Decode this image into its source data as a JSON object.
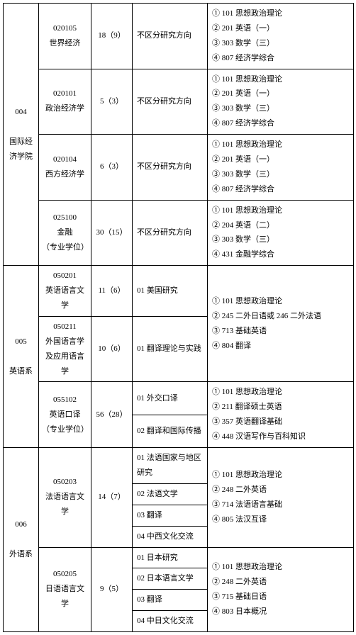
{
  "departments": [
    {
      "code": "004",
      "name": "国际经济学院",
      "majors": [
        {
          "code": "020105",
          "name": "世界经济",
          "quota": "18（9）",
          "directions": [
            "不区分研究方向"
          ],
          "exams": [
            "① 101 思想政治理论",
            "② 201 英语（一）",
            "③ 303 数学（三）",
            "④ 807 经济学综合"
          ]
        },
        {
          "code": "020101",
          "name": "政治经济学",
          "quota": "5（3）",
          "directions": [
            "不区分研究方向"
          ],
          "exams": [
            "① 101 思想政治理论",
            "② 201 英语（一）",
            "③ 303 数学（三）",
            "④ 807 经济学综合"
          ]
        },
        {
          "code": "020104",
          "name": "西方经济学",
          "quota": "6（3）",
          "directions": [
            "不区分研究方向"
          ],
          "exams": [
            "① 101 思想政治理论",
            "② 201 英语（一）",
            "③ 303 数学（三）",
            "④ 807 经济学综合"
          ]
        },
        {
          "code": "025100",
          "name": "金融",
          "note": "（专业学位）",
          "quota": "30（15）",
          "directions": [
            "不区分研究方向"
          ],
          "exams": [
            "① 101 思想政治理论",
            "② 204 英语（二）",
            "③ 303 数学（三）",
            "④ 431 金融学综合"
          ]
        }
      ]
    },
    {
      "code": "005",
      "name": "英语系",
      "majors": [
        {
          "code": "050201",
          "name": "英语语言文学",
          "quota": "11（6）",
          "directions": [
            "01 美国研究"
          ],
          "exams": [
            "① 101 思想政治理论",
            "② 245 二外日语或 246 二外法语",
            "③ 713 基础英语",
            "④ 804 翻译"
          ],
          "share_exam_next": true
        },
        {
          "code": "050211",
          "name": "外国语言学及应用语言学",
          "quota": "10（6）",
          "directions": [
            "01 翻译理论与实践"
          ]
        },
        {
          "code": "055102",
          "name": "英语口译",
          "note": "（专业学位）",
          "quota": "56（28）",
          "directions": [
            "01 外交口译",
            "02 翻译和国际传播"
          ],
          "exams": [
            "① 101 思想政治理论",
            "② 211 翻译硕士英语",
            "③ 357 英语翻译基础",
            "④ 448 汉语写作与百科知识"
          ]
        }
      ]
    },
    {
      "code": "006",
      "name": "外语系",
      "majors": [
        {
          "code": "050203",
          "name": "法语语言文学",
          "quota": "14（7）",
          "directions": [
            "01 法语国家与地区研究",
            "02 法语文学",
            "03 翻译",
            "04 中西文化交流"
          ],
          "exams": [
            "① 101 思想政治理论",
            "② 248 二外英语",
            "③ 714 法语语言基础",
            "④ 805 法汉互译"
          ]
        },
        {
          "code": "050205",
          "name": "日语语言文学",
          "quota": "9（5）",
          "directions": [
            "01 日本研究",
            "02 日本语言文学",
            "03 翻译",
            "04 中日文化交流"
          ],
          "exams": [
            "① 101 思想政治理论",
            "② 248 二外英语",
            "③ 715 基础日语",
            "④ 803 日本概况"
          ]
        }
      ]
    }
  ]
}
